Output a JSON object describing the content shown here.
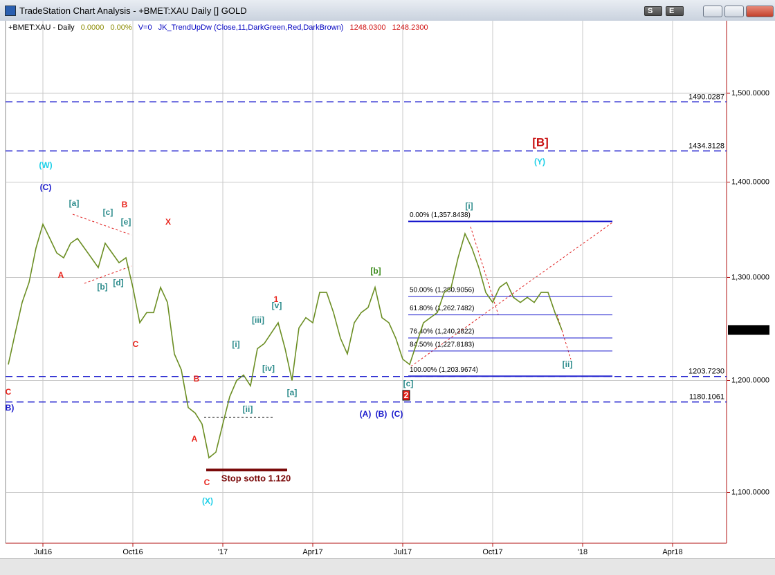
{
  "window": {
    "title": "TradeStation Chart Analysis - +BMET:XAU Daily [] GOLD",
    "buttons": [
      "S",
      "E"
    ]
  },
  "info_line": {
    "symbol": "+BMET:XAU - Daily",
    "change": "0.0000",
    "change_pct": "0.00%",
    "volume": "V=0",
    "indicator": "JK_TrendUpDw (Close,11,DarkGreen,Red,DarkBrown)",
    "value1": "1248.0300",
    "value2": "1248.2300"
  },
  "chart_data": {
    "type": "line",
    "categories": [
      null,
      null,
      null,
      null,
      null,
      "Jul16",
      null,
      null,
      null,
      null,
      null,
      null,
      null,
      null,
      null,
      null,
      null,
      null,
      "Oct16",
      null,
      null,
      null,
      null,
      null,
      null,
      null,
      null,
      null,
      null,
      null,
      null,
      "'17",
      null,
      null,
      null,
      null,
      null,
      null,
      null,
      null,
      null,
      null,
      null,
      null,
      "Apr17",
      null,
      null,
      null,
      null,
      null,
      null,
      null,
      null,
      null,
      null,
      null,
      null,
      "Jul17",
      null,
      null,
      null,
      null,
      null,
      null,
      null,
      null,
      null,
      null,
      null,
      null,
      "Oct17",
      null,
      null,
      null,
      null,
      null,
      null,
      null,
      null,
      null,
      null,
      null,
      null,
      "'18",
      null,
      null,
      null,
      null,
      null,
      null,
      null,
      null,
      null,
      null,
      null,
      null,
      "Apr18",
      null,
      null,
      null,
      null,
      null,
      null,
      null
    ],
    "series": [
      {
        "color": "#6b8e23",
        "values": [
          1215,
          1245,
          1275,
          1295,
          1330,
          1355,
          1340,
          1325,
          1320,
          1335,
          1340,
          1330,
          1320,
          1310,
          1335,
          1325,
          1315,
          1320,
          1290,
          1255,
          1265,
          1265,
          1290,
          1275,
          1225,
          1210,
          1175,
          1170,
          1160,
          1130,
          1135,
          1160,
          1185,
          1200,
          1205,
          1195,
          1230,
          1235,
          1245,
          1255,
          1230,
          1200,
          1250,
          1260,
          1255,
          1285,
          1285,
          1265,
          1240,
          1225,
          1255,
          1265,
          1270,
          1290,
          1260,
          1255,
          1240,
          1220,
          1215,
          1235,
          1255,
          1260,
          1265,
          1285,
          1290,
          1320,
          1345,
          1330,
          1310,
          1285,
          1275,
          1290,
          1295,
          1280,
          1275,
          1280,
          1275,
          1285,
          1285,
          1265,
          1248,
          null,
          null,
          null,
          null,
          null,
          null,
          null,
          null,
          null,
          null,
          null,
          null,
          null,
          null,
          null,
          null,
          null,
          null,
          null,
          null,
          null,
          null,
          null
        ]
      }
    ],
    "ylim": [
      1058,
      1587
    ],
    "log_scale": true,
    "grid": true,
    "yticks": [
      {
        "value": 1100,
        "label": "1,100.0000"
      },
      {
        "value": 1200,
        "label": "1,200.0000"
      },
      {
        "value": 1300,
        "label": "1,300.0000"
      },
      {
        "value": 1400,
        "label": "1,400.0000"
      },
      {
        "value": 1500,
        "label": "1,500.0000"
      }
    ],
    "last_price": {
      "value": 1248,
      "label": "1,248.0000"
    },
    "levels": [
      1490.0287,
      1434.3128,
      {
        "value": 1203.723,
        "label": "1203.7230"
      },
      1180.1061
    ],
    "fib_levels": [
      {
        "value": 1357.8438,
        "label": "0.00% (1,357.8438)"
      },
      {
        "value": 1280.9056,
        "label": "50.00% (1,280.9056)"
      },
      {
        "value": 1262.7482,
        "label": "61.80% (1,262.7482)"
      },
      {
        "value": 1240.2822,
        "label": "76.40% (1,240.2822)"
      },
      {
        "value": 1227.8183,
        "label": "84.50% (1,227.8183)"
      },
      {
        "value": 1203.9674,
        "label": "100.00% (1,203.9674)"
      }
    ],
    "annotations": [
      {
        "text": "(W)",
        "color": "#1ed0e8"
      },
      {
        "text": "(Y)",
        "color": "#1ed0e8"
      },
      {
        "text": "(X)",
        "color": "#1ed0e8"
      },
      {
        "text": "(C)",
        "color": "#1a1acd"
      },
      {
        "text": "(A)",
        "color": "#1a1acd"
      },
      {
        "text": "(B)",
        "color": "#1a1acd"
      },
      {
        "text": "(C)",
        "color": "#1a1acd"
      },
      {
        "text": "B)",
        "color": "#1a1acd"
      },
      {
        "text": "[B]",
        "color": "#c81010"
      },
      {
        "text": "B",
        "color": "#e8231b"
      },
      {
        "text": "X",
        "color": "#e8231b"
      },
      {
        "text": "A",
        "color": "#e8231b"
      },
      {
        "text": "C",
        "color": "#e8231b"
      },
      {
        "text": "B",
        "color": "#e8231b"
      },
      {
        "text": "A",
        "color": "#e8231b"
      },
      {
        "text": "C",
        "color": "#e8231b"
      },
      {
        "text": "1",
        "color": "#e8231b"
      },
      {
        "text": "C",
        "color": "#e8231b"
      },
      {
        "text": "2",
        "color": "#e8231b"
      },
      {
        "text": "[a]",
        "color": "#2a8a8a"
      },
      {
        "text": "[c]",
        "color": "#2a8a8a"
      },
      {
        "text": "[e]",
        "color": "#2a8a8a"
      },
      {
        "text": "[b]",
        "color": "#2a8a8a"
      },
      {
        "text": "[d]",
        "color": "#2a8a8a"
      },
      {
        "text": "[i]",
        "color": "#2a8a8a"
      },
      {
        "text": "[iii]",
        "color": "#2a8a8a"
      },
      {
        "text": "[v]",
        "color": "#2a8a8a"
      },
      {
        "text": "[iv]",
        "color": "#2a8a8a"
      },
      {
        "text": "[ii]",
        "color": "#2a8a8a"
      },
      {
        "text": "[a]",
        "color": "#2a8a8a"
      },
      {
        "text": "[i]",
        "color": "#2a8a8a"
      },
      {
        "text": "[ii]",
        "color": "#2a8a8a"
      },
      {
        "text": "[c]",
        "color": "#2a8a8a"
      },
      {
        "text": "[b]",
        "color": "#3a8a1a"
      }
    ],
    "stop_note": "Stop sotto 1.120"
  }
}
